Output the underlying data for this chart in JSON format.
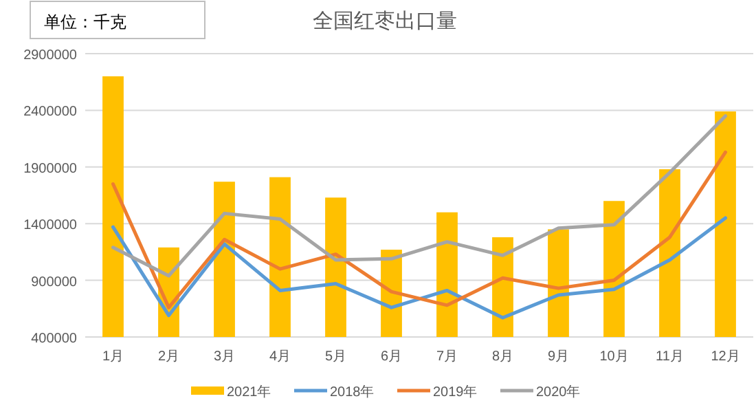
{
  "chart_data": {
    "type": "bar",
    "title": "全国红枣出口量",
    "annotations": [
      "单位：千克"
    ],
    "categories": [
      "1月",
      "2月",
      "3月",
      "4月",
      "5月",
      "6月",
      "7月",
      "8月",
      "9月",
      "10月",
      "11月",
      "12月"
    ],
    "series": [
      {
        "name": "2021年",
        "color": "#ffc000",
        "values": [
          2700000,
          1190000,
          1770000,
          1810000,
          1630000,
          1170000,
          1500000,
          1280000,
          1350000,
          1600000,
          1880000,
          2390000
        ]
      },
      {
        "name": "2018年",
        "type": "line",
        "color": "#5b9bd5",
        "values": [
          1370000,
          590000,
          1220000,
          810000,
          870000,
          660000,
          810000,
          570000,
          770000,
          820000,
          1080000,
          1450000
        ]
      },
      {
        "name": "2019年",
        "type": "line",
        "color": "#ed7d31",
        "values": [
          1750000,
          660000,
          1260000,
          1000000,
          1130000,
          800000,
          680000,
          920000,
          830000,
          900000,
          1280000,
          2030000
        ]
      },
      {
        "name": "2020年",
        "type": "line",
        "color": "#a5a5a5",
        "values": [
          1190000,
          940000,
          1490000,
          1440000,
          1080000,
          1090000,
          1240000,
          1120000,
          1360000,
          1390000,
          1850000,
          2350000
        ]
      }
    ],
    "ylim": [
      400000,
      2900000
    ],
    "yticks": [
      400000,
      900000,
      1400000,
      1900000,
      2400000,
      2900000
    ],
    "grid": "y",
    "legend": "bottom",
    "marker": "none",
    "line_style": "solid"
  }
}
